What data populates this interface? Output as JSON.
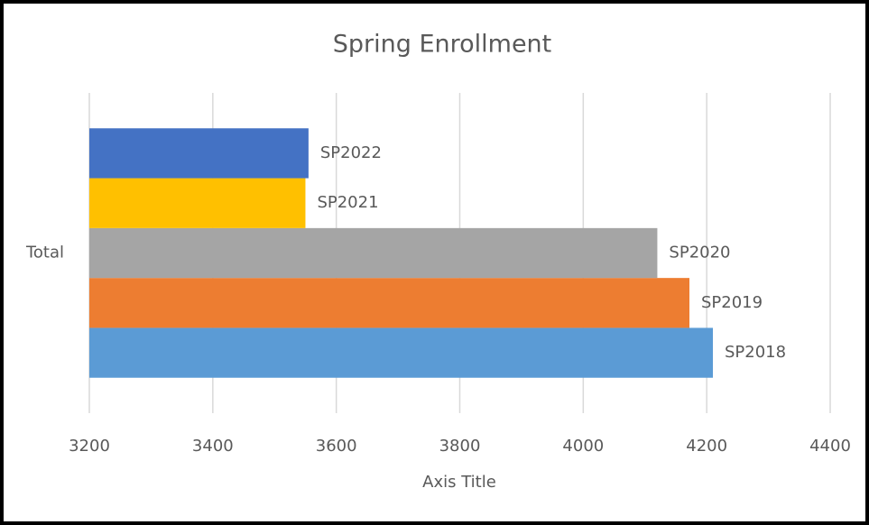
{
  "chart_data": {
    "type": "bar",
    "orientation": "horizontal",
    "title": "Spring Enrollment",
    "x_axis_title": "Axis Title",
    "categories": [
      "Total"
    ],
    "series": [
      {
        "name": "SP2018",
        "color": "#5b9bd5",
        "values": [
          4210
        ]
      },
      {
        "name": "SP2019",
        "color": "#ed7d31",
        "values": [
          4172
        ]
      },
      {
        "name": "SP2020",
        "color": "#a5a5a5",
        "values": [
          4120
        ]
      },
      {
        "name": "SP2021",
        "color": "#ffc000",
        "values": [
          3550
        ]
      },
      {
        "name": "SP2022",
        "color": "#4472c4",
        "values": [
          3555
        ]
      }
    ],
    "xlim": [
      3200,
      4400
    ],
    "xticks": [
      3200,
      3400,
      3600,
      3800,
      4000,
      4200,
      4400
    ],
    "grid": true
  }
}
